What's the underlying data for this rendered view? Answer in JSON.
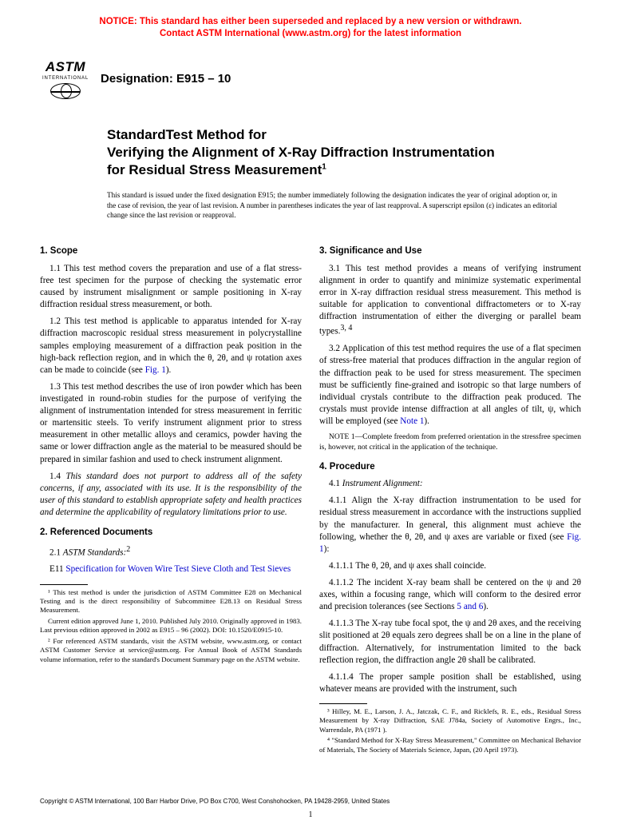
{
  "notice": {
    "line1": "NOTICE: This standard has either been superseded and replaced by a new version or withdrawn.",
    "line2": "Contact ASTM International (www.astm.org) for the latest information",
    "color": "#ff0000"
  },
  "logo": {
    "text": "ASTM",
    "sub": "INTERNATIONAL"
  },
  "designation": "Designation: E915 – 10",
  "title": {
    "line1": "StandardTest Method for",
    "line2": "Verifying the Alignment of X-Ray Diffraction Instrumentation",
    "line3": "for Residual Stress Measurement",
    "sup": "1"
  },
  "issue_note": "This standard is issued under the fixed designation E915; the number immediately following the designation indicates the year of original adoption or, in the case of revision, the year of last revision. A number in parentheses indicates the year of last reapproval. A superscript epsilon (ε) indicates an editorial change since the last revision or reapproval.",
  "sections": {
    "scope": {
      "head": "1. Scope",
      "p1_num": "1.1 ",
      "p1": "This test method covers the preparation and use of a flat stress-free test specimen for the purpose of checking the systematic error caused by instrument misalignment or sample positioning in X-ray diffraction residual stress measurement, or both.",
      "p2_num": "1.2 ",
      "p2a": "This test method is applicable to apparatus intended for X-ray diffraction macroscopic residual stress measurement in polycrystalline samples employing measurement of a diffraction peak position in the high-back reflection region, and in which the θ, 2θ, and ψ rotation axes can be made to coincide (see ",
      "p2_fig": "Fig. 1",
      "p2b": ").",
      "p3_num": "1.3 ",
      "p3": "This test method describes the use of iron powder which has been investigated in round-robin studies for the purpose of verifying the alignment of instrumentation intended for stress measurement in ferritic or martensitic steels. To verify instrument alignment prior to stress measurement in other metallic alloys and ceramics, powder having the same or lower diffraction angle as the material to be measured should be prepared in similar fashion and used to check instrument alignment.",
      "p4_num": "1.4 ",
      "p4": "This standard does not purport to address all of the safety concerns, if any, associated with its use. It is the responsibility of the user of this standard to establish appropriate safety and health practices and determine the applicability of regulatory limitations prior to use."
    },
    "refs": {
      "head": "2. Referenced Documents",
      "p1_num": "2.1 ",
      "p1_label": "ASTM Standards:",
      "p1_sup": "2",
      "item_code": "E11 ",
      "item_title": "Specification for Woven Wire Test Sieve Cloth and Test Sieves"
    },
    "sig": {
      "head": "3. Significance and Use",
      "p1_num": "3.1 ",
      "p1": "This test method provides a means of verifying instrument alignment in order to quantify and minimize systematic experimental error in X-ray diffraction residual stress measurement. This method is suitable for application to conventional diffractometers or to X-ray diffraction instrumentation of either the diverging or parallel beam types.",
      "p1_sup": "3, 4",
      "p2_num": "3.2 ",
      "p2a": "Application of this test method requires the use of a flat specimen of stress-free material that produces diffraction in the angular region of the diffraction peak to be used for stress measurement. The specimen must be sufficiently fine-grained and isotropic so that large numbers of individual crystals contribute to the diffraction peak produced. The crystals must provide intense diffraction at all angles of tilt, ψ, which will be employed (see ",
      "p2_note": "Note 1",
      "p2b": ").",
      "note_label": "NOTE 1—",
      "note_text": "Complete freedom from preferred orientation in the stressfree specimen is, however, not critical in the application of the technique."
    },
    "proc": {
      "head": "4. Procedure",
      "p0_num": "4.1 ",
      "p0_label": "Instrument Alignment:",
      "p1_num": "4.1.1 ",
      "p1a": "Align the X-ray diffraction instrumentation to be used for residual stress measurement in accordance with the instructions supplied by the manufacturer. In general, this alignment must achieve the following, whether the θ, 2θ, and ψ axes are variable or fixed (see ",
      "p1_fig": "Fig. 1",
      "p1b": "):",
      "p2_num": "4.1.1.1 ",
      "p2": "The θ, 2θ, and ψ axes shall coincide.",
      "p3_num": "4.1.1.2 ",
      "p3a": "The incident X-ray beam shall be centered on the ψ and 2θ axes, within a focusing range, which will conform to the desired error and precision tolerances (see Sections ",
      "p3_link": "5 and 6",
      "p3b": ").",
      "p4_num": "4.1.1.3 ",
      "p4": "The X-ray tube focal spot, the ψ and 2θ axes, and the receiving slit positioned at 2θ equals zero degrees shall be on a line in the plane of diffraction. Alternatively, for instrumentation limited to the back reflection region, the diffraction angle 2θ shall be calibrated.",
      "p5_num": "4.1.1.4 ",
      "p5": "The proper sample position shall be established, using whatever means are provided with the instrument, such"
    }
  },
  "footnotes_left": {
    "f1": "¹ This test method is under the jurisdiction of ASTM Committee E28 on Mechanical Testing and is the direct responsibility of Subcommittee E28.13 on Residual Stress Measurement.",
    "f1b": "Current edition approved June 1, 2010. Published July 2010. Originally approved in 1983. Last previous edition approved in 2002 as E915 – 96 (2002). DOI: 10.1520/E0915-10.",
    "f2": "² For referenced ASTM standards, visit the ASTM website, www.astm.org, or contact ASTM Customer Service at service@astm.org. For Annual Book of ASTM Standards volume information, refer to the standard's Document Summary page on the ASTM website."
  },
  "footnotes_right": {
    "f3": "³ Hilley, M. E., Larson, J. A., Jatczak, C. F., and Ricklefs, R. E., eds., Residual Stress Measurement by X-ray Diffraction, SAE J784a, Society of Automotive Engrs., Inc., Warrendale, PA (1971 ).",
    "f4": "⁴ \"Standard Method for X-Ray Stress Measurement,\" Committee on Mechanical Behavior of Materials, The Society of Materials Science, Japan, (20 April 1973)."
  },
  "copyright": "Copyright © ASTM International, 100 Barr Harbor Drive, PO Box C700, West Conshohocken, PA 19428-2959, United States",
  "page_number": "1"
}
